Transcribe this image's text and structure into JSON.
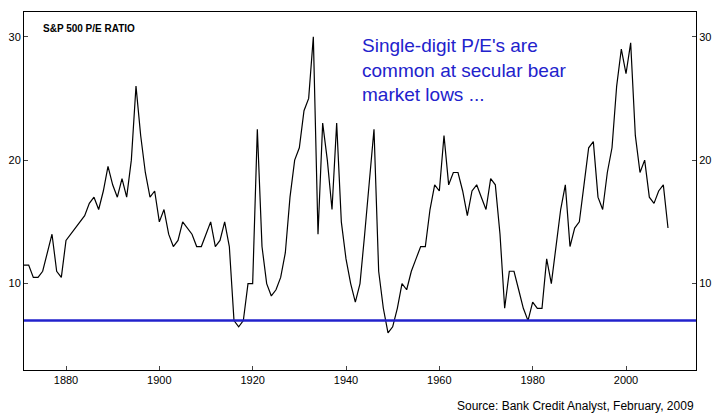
{
  "chart_data": {
    "type": "line",
    "title": "S&P 500 P/E RATIO",
    "annotation": "Single-digit P/E's are common at secular bear market lows ...",
    "source": "Source: Bank Credit Analyst, February, 2009",
    "x": [
      1871,
      1872,
      1873,
      1874,
      1875,
      1876,
      1877,
      1878,
      1879,
      1880,
      1881,
      1882,
      1883,
      1884,
      1885,
      1886,
      1887,
      1888,
      1889,
      1890,
      1891,
      1892,
      1893,
      1894,
      1895,
      1896,
      1897,
      1898,
      1899,
      1900,
      1901,
      1902,
      1903,
      1904,
      1905,
      1906,
      1907,
      1908,
      1909,
      1910,
      1911,
      1912,
      1913,
      1914,
      1915,
      1916,
      1917,
      1918,
      1919,
      1920,
      1921,
      1922,
      1923,
      1924,
      1925,
      1926,
      1927,
      1928,
      1929,
      1930,
      1931,
      1932,
      1933,
      1934,
      1935,
      1936,
      1937,
      1938,
      1939,
      1940,
      1941,
      1942,
      1943,
      1944,
      1945,
      1946,
      1947,
      1948,
      1949,
      1950,
      1951,
      1952,
      1953,
      1954,
      1955,
      1956,
      1957,
      1958,
      1959,
      1960,
      1961,
      1962,
      1963,
      1964,
      1965,
      1966,
      1967,
      1968,
      1969,
      1970,
      1971,
      1972,
      1973,
      1974,
      1975,
      1976,
      1977,
      1978,
      1979,
      1980,
      1981,
      1982,
      1983,
      1984,
      1985,
      1986,
      1987,
      1988,
      1989,
      1990,
      1991,
      1992,
      1993,
      1994,
      1995,
      1996,
      1997,
      1998,
      1999,
      2000,
      2001,
      2002,
      2003,
      2004,
      2005,
      2006,
      2007,
      2008,
      2009
    ],
    "values": [
      11.5,
      11.5,
      10.5,
      10.5,
      11,
      12.5,
      14,
      11,
      10.5,
      13.5,
      14,
      14.5,
      15,
      15.5,
      16.5,
      17,
      16,
      17.5,
      19.5,
      18,
      17,
      18.5,
      17,
      20,
      26,
      22,
      19,
      17,
      17.5,
      15,
      16,
      14,
      13,
      13.5,
      15,
      14.5,
      14,
      13,
      13,
      14,
      15,
      13,
      13.5,
      15,
      13,
      7,
      6.5,
      7,
      10,
      10,
      22.5,
      13,
      10,
      9,
      9.5,
      10.5,
      12.5,
      17,
      20,
      21,
      24,
      25,
      30,
      14,
      23,
      20,
      16,
      23,
      15,
      12,
      10,
      8.5,
      10,
      14,
      18,
      22.5,
      11,
      8,
      6,
      6.5,
      8,
      10,
      9.5,
      11,
      12,
      13,
      13,
      16,
      18,
      17.5,
      22,
      18,
      19,
      19,
      17.5,
      15.5,
      17.5,
      18,
      17,
      16,
      18.5,
      18,
      14,
      8,
      11,
      11,
      9.5,
      8,
      7,
      8.5,
      8,
      8,
      12,
      10,
      13,
      16,
      18,
      13,
      14.5,
      15,
      18,
      21,
      21.5,
      17,
      16,
      19,
      21,
      26,
      29,
      27,
      29.5,
      22,
      19,
      20,
      17,
      16.5,
      17.5,
      18,
      14.5
    ],
    "color": "#000000",
    "reference_line": {
      "value": 7,
      "color": "#2222cc"
    },
    "xlim": [
      1871,
      2015
    ],
    "xticks": [
      1880,
      1900,
      1920,
      1940,
      1960,
      1980,
      2000
    ],
    "ylim": [
      3,
      32
    ],
    "yticks": [
      10,
      20,
      30
    ],
    "y2lim": [
      3,
      32
    ],
    "y2ticks": [
      10,
      20,
      30
    ],
    "grid": false
  }
}
